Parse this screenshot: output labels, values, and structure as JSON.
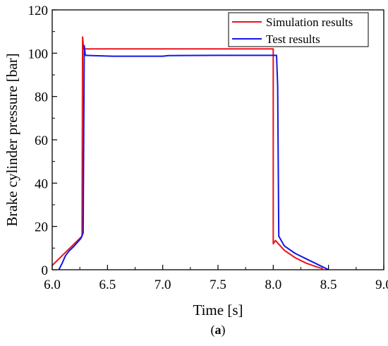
{
  "chart_data": {
    "type": "line",
    "title": "",
    "xlabel": "Time [s]",
    "ylabel": "Brake cylinder pressure [bar]",
    "xlim": [
      6.0,
      9.0
    ],
    "ylim": [
      0,
      120
    ],
    "x_ticks": [
      "6.0",
      "6.5",
      "7.0",
      "7.5",
      "8.0",
      "8.5",
      "9.0"
    ],
    "y_ticks": [
      "0",
      "20",
      "40",
      "60",
      "80",
      "100",
      "120"
    ],
    "x_tick_values": [
      6.0,
      6.5,
      7.0,
      7.5,
      8.0,
      8.5,
      9.0
    ],
    "y_tick_values": [
      0,
      20,
      40,
      60,
      80,
      100,
      120
    ],
    "grid": false,
    "legend_position": "top-right",
    "panel_label": {
      "open": "(",
      "letter": "a",
      "close": ")"
    },
    "series": [
      {
        "name": "Simulation results",
        "color": "#e8141b",
        "points": [
          [
            6.0,
            2.0
          ],
          [
            6.27,
            15.5
          ],
          [
            6.275,
            107.5
          ],
          [
            6.285,
            102.0
          ],
          [
            7.0,
            102.0
          ],
          [
            8.0,
            102.0
          ],
          [
            8.0,
            12.0
          ],
          [
            8.02,
            13.5
          ],
          [
            8.1,
            9.0
          ],
          [
            8.2,
            5.5
          ],
          [
            8.3,
            3.0
          ],
          [
            8.4,
            1.2
          ],
          [
            8.45,
            0.5
          ]
        ]
      },
      {
        "name": "Test results",
        "color": "#1416e8",
        "points": [
          [
            6.06,
            0.0
          ],
          [
            6.09,
            3.0
          ],
          [
            6.12,
            6.5
          ],
          [
            6.15,
            8.5
          ],
          [
            6.2,
            11.0
          ],
          [
            6.26,
            14.5
          ],
          [
            6.28,
            17.0
          ],
          [
            6.29,
            103.5
          ],
          [
            6.3,
            99.0
          ],
          [
            6.55,
            98.6
          ],
          [
            7.0,
            98.6
          ],
          [
            7.05,
            98.9
          ],
          [
            7.5,
            99.0
          ],
          [
            8.03,
            99.0
          ],
          [
            8.04,
            85.0
          ],
          [
            8.05,
            15.5
          ],
          [
            8.1,
            11.0
          ],
          [
            8.2,
            7.5
          ],
          [
            8.3,
            5.0
          ],
          [
            8.4,
            2.5
          ],
          [
            8.5,
            0.0
          ]
        ]
      }
    ]
  }
}
